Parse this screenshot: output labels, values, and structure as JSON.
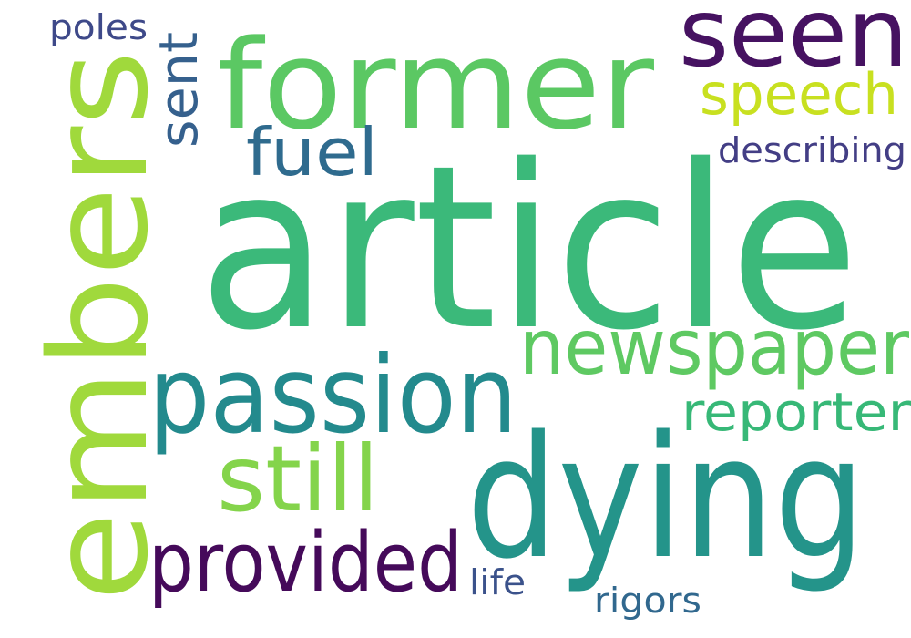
{
  "word_cloud": {
    "background": "#ffffff",
    "words": [
      {
        "key": "article",
        "text": "article",
        "color": "#3bb97a"
      },
      {
        "key": "dying",
        "text": "dying",
        "color": "#24948a"
      },
      {
        "key": "embers",
        "text": "embers",
        "color": "#a0d93c"
      },
      {
        "key": "former",
        "text": "former",
        "color": "#5bc863"
      },
      {
        "key": "passion",
        "text": "passion",
        "color": "#238a8d"
      },
      {
        "key": "newspaper",
        "text": "newspaper",
        "color": "#5ec962"
      },
      {
        "key": "seen",
        "text": "seen",
        "color": "#461261"
      },
      {
        "key": "provided",
        "text": "provided",
        "color": "#450a5a"
      },
      {
        "key": "still",
        "text": "still",
        "color": "#84d44b"
      },
      {
        "key": "fuel",
        "text": "fuel",
        "color": "#2f6b8e"
      },
      {
        "key": "sent",
        "text": "sent",
        "color": "#35608d"
      },
      {
        "key": "speech",
        "text": "speech",
        "color": "#c8e020"
      },
      {
        "key": "reporter",
        "text": "reporter",
        "color": "#37b877"
      },
      {
        "key": "describing",
        "text": "describing",
        "color": "#433e85"
      },
      {
        "key": "poles",
        "text": "poles",
        "color": "#3e4989"
      },
      {
        "key": "life",
        "text": "life",
        "color": "#3b528b"
      },
      {
        "key": "rigors",
        "text": "rigors",
        "color": "#31688e"
      }
    ]
  }
}
